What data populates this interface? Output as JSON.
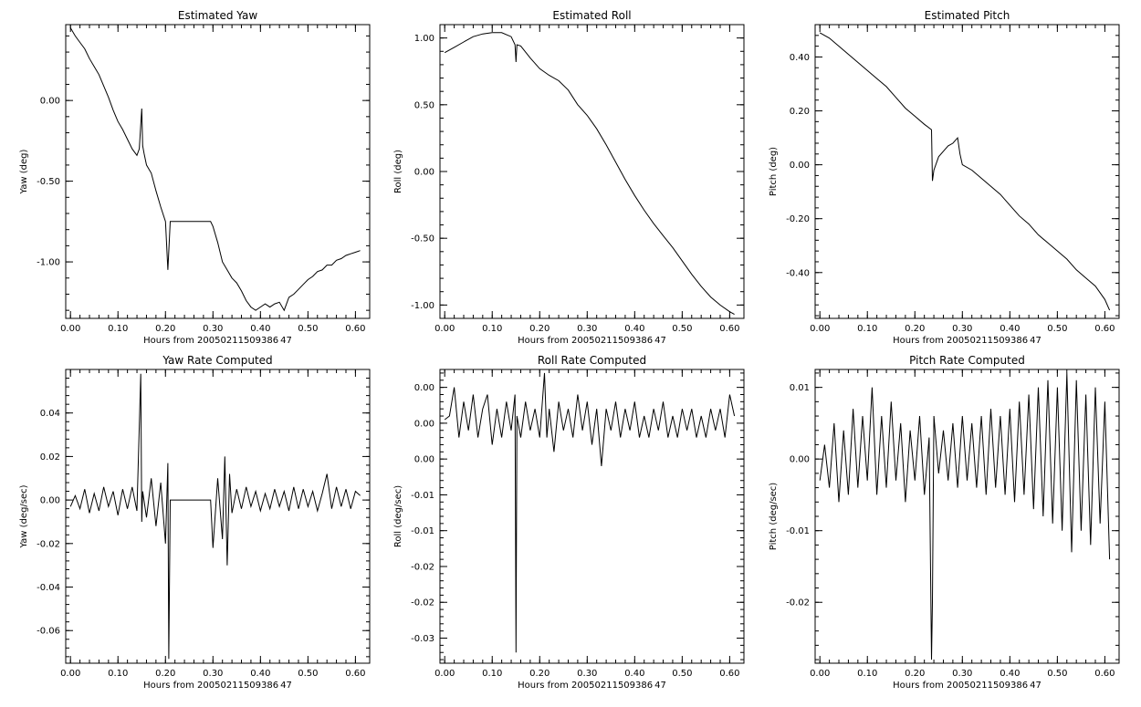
{
  "chart_data": [
    {
      "type": "line",
      "title": "Estimated Yaw",
      "xlabel": "Hours from 20050211509386 47",
      "ylabel": "Yaw (deg)",
      "xlim": [
        -0.01,
        0.63
      ],
      "ylim": [
        -1.35,
        0.47
      ],
      "xticks": [
        "0.00",
        "0.10",
        "0.20",
        "0.30",
        "0.40",
        "0.50",
        "0.60"
      ],
      "yticks": [
        "0.00",
        "-0.50",
        "-1.00"
      ],
      "x": [
        0.0,
        0.01,
        0.02,
        0.03,
        0.04,
        0.05,
        0.06,
        0.07,
        0.08,
        0.09,
        0.1,
        0.11,
        0.12,
        0.13,
        0.14,
        0.145,
        0.15,
        0.152,
        0.155,
        0.16,
        0.17,
        0.18,
        0.19,
        0.2,
        0.205,
        0.21,
        0.22,
        0.25,
        0.28,
        0.295,
        0.3,
        0.31,
        0.32,
        0.33,
        0.34,
        0.35,
        0.36,
        0.37,
        0.38,
        0.39,
        0.4,
        0.41,
        0.42,
        0.43,
        0.44,
        0.45,
        0.46,
        0.47,
        0.48,
        0.49,
        0.5,
        0.51,
        0.52,
        0.53,
        0.54,
        0.55,
        0.56,
        0.57,
        0.58,
        0.59,
        0.6,
        0.61
      ],
      "values": [
        0.45,
        0.4,
        0.36,
        0.32,
        0.26,
        0.21,
        0.16,
        0.09,
        0.02,
        -0.06,
        -0.13,
        -0.18,
        -0.24,
        -0.3,
        -0.34,
        -0.3,
        -0.05,
        -0.28,
        -0.33,
        -0.4,
        -0.45,
        -0.56,
        -0.66,
        -0.75,
        -1.05,
        -0.75,
        -0.75,
        -0.75,
        -0.75,
        -0.75,
        -0.78,
        -0.88,
        -1.0,
        -1.05,
        -1.1,
        -1.13,
        -1.18,
        -1.24,
        -1.28,
        -1.3,
        -1.28,
        -1.26,
        -1.28,
        -1.26,
        -1.25,
        -1.3,
        -1.22,
        -1.2,
        -1.17,
        -1.14,
        -1.11,
        -1.09,
        -1.06,
        -1.05,
        -1.02,
        -1.02,
        -0.99,
        -0.98,
        -0.96,
        -0.95,
        -0.94,
        -0.93
      ]
    },
    {
      "type": "line",
      "title": "Estimated Roll",
      "xlabel": "Hours from 20050211509386 47",
      "ylabel": "Roll (deg)",
      "xlim": [
        -0.01,
        0.63
      ],
      "ylim": [
        -1.1,
        1.1
      ],
      "xticks": [
        "0.00",
        "0.10",
        "0.20",
        "0.30",
        "0.40",
        "0.50",
        "0.60"
      ],
      "yticks": [
        "1.00",
        "0.50",
        "0.00",
        "-0.50",
        "-1.00"
      ],
      "x": [
        0.0,
        0.02,
        0.04,
        0.06,
        0.08,
        0.1,
        0.12,
        0.14,
        0.148,
        0.15,
        0.152,
        0.16,
        0.18,
        0.2,
        0.22,
        0.24,
        0.26,
        0.28,
        0.3,
        0.32,
        0.34,
        0.36,
        0.38,
        0.4,
        0.42,
        0.44,
        0.46,
        0.48,
        0.5,
        0.52,
        0.54,
        0.56,
        0.58,
        0.6,
        0.61
      ],
      "values": [
        0.89,
        0.93,
        0.97,
        1.01,
        1.03,
        1.04,
        1.04,
        1.01,
        0.95,
        0.82,
        0.95,
        0.94,
        0.85,
        0.77,
        0.72,
        0.68,
        0.61,
        0.5,
        0.42,
        0.32,
        0.2,
        0.07,
        -0.06,
        -0.18,
        -0.29,
        -0.39,
        -0.48,
        -0.57,
        -0.67,
        -0.77,
        -0.86,
        -0.94,
        -1.0,
        -1.05,
        -1.07
      ]
    },
    {
      "type": "line",
      "title": "Estimated Pitch",
      "xlabel": "Hours from 20050211509386 47",
      "ylabel": "Pitch (deg)",
      "xlim": [
        -0.01,
        0.63
      ],
      "ylim": [
        -0.57,
        0.52
      ],
      "xticks": [
        "0.00",
        "0.10",
        "0.20",
        "0.30",
        "0.40",
        "0.50",
        "0.60"
      ],
      "yticks": [
        "0.40",
        "0.20",
        "0.00",
        "-0.20",
        "-0.40"
      ],
      "x": [
        0.0,
        0.02,
        0.04,
        0.06,
        0.08,
        0.1,
        0.12,
        0.14,
        0.16,
        0.18,
        0.2,
        0.22,
        0.235,
        0.237,
        0.24,
        0.25,
        0.26,
        0.27,
        0.28,
        0.29,
        0.295,
        0.3,
        0.32,
        0.34,
        0.36,
        0.38,
        0.4,
        0.42,
        0.44,
        0.46,
        0.48,
        0.5,
        0.52,
        0.54,
        0.56,
        0.58,
        0.6,
        0.61
      ],
      "values": [
        0.49,
        0.47,
        0.44,
        0.41,
        0.38,
        0.35,
        0.32,
        0.29,
        0.25,
        0.21,
        0.18,
        0.15,
        0.13,
        -0.06,
        -0.02,
        0.03,
        0.05,
        0.07,
        0.08,
        0.1,
        0.04,
        0.0,
        -0.02,
        -0.05,
        -0.08,
        -0.11,
        -0.15,
        -0.19,
        -0.22,
        -0.26,
        -0.29,
        -0.32,
        -0.35,
        -0.39,
        -0.42,
        -0.45,
        -0.5,
        -0.54
      ]
    },
    {
      "type": "line",
      "title": "Yaw Rate Computed",
      "xlabel": "Hours from 20050211509386 47",
      "ylabel": "Yaw (deg/sec)",
      "xlim": [
        -0.01,
        0.63
      ],
      "ylim": [
        -0.075,
        0.06
      ],
      "xticks": [
        "0.00",
        "0.10",
        "0.20",
        "0.30",
        "0.40",
        "0.50",
        "0.60"
      ],
      "yticks": [
        "0.04",
        "0.02",
        "0.00",
        "-0.02",
        "-0.04",
        "-0.06"
      ],
      "x": [
        0.0,
        0.01,
        0.02,
        0.03,
        0.04,
        0.05,
        0.06,
        0.07,
        0.08,
        0.09,
        0.1,
        0.11,
        0.12,
        0.13,
        0.14,
        0.148,
        0.15,
        0.152,
        0.16,
        0.17,
        0.18,
        0.19,
        0.2,
        0.205,
        0.207,
        0.21,
        0.22,
        0.25,
        0.28,
        0.295,
        0.3,
        0.31,
        0.32,
        0.325,
        0.33,
        0.335,
        0.34,
        0.35,
        0.36,
        0.37,
        0.38,
        0.39,
        0.4,
        0.41,
        0.42,
        0.43,
        0.44,
        0.45,
        0.46,
        0.47,
        0.48,
        0.49,
        0.5,
        0.51,
        0.52,
        0.53,
        0.54,
        0.55,
        0.56,
        0.57,
        0.58,
        0.59,
        0.6,
        0.61
      ],
      "values": [
        -0.003,
        0.002,
        -0.004,
        0.005,
        -0.006,
        0.003,
        -0.005,
        0.006,
        -0.003,
        0.004,
        -0.007,
        0.005,
        -0.004,
        0.006,
        -0.005,
        0.058,
        -0.01,
        0.004,
        -0.008,
        0.01,
        -0.012,
        0.008,
        -0.02,
        0.017,
        -0.073,
        0.0,
        0.0,
        0.0,
        0.0,
        0.0,
        -0.022,
        0.01,
        -0.018,
        0.02,
        -0.03,
        0.012,
        -0.006,
        0.005,
        -0.004,
        0.006,
        -0.003,
        0.004,
        -0.005,
        0.003,
        -0.004,
        0.005,
        -0.003,
        0.004,
        -0.005,
        0.006,
        -0.004,
        0.005,
        -0.003,
        0.004,
        -0.005,
        0.003,
        0.012,
        -0.004,
        0.006,
        -0.003,
        0.005,
        -0.004,
        0.004,
        0.002
      ]
    },
    {
      "type": "line",
      "title": "Roll Rate Computed",
      "xlabel": "Hours from 20050211509386 47",
      "ylabel": "Roll (deg/sec)",
      "xlim": [
        -0.01,
        0.63
      ],
      "ylim": [
        -0.0335,
        0.0075
      ],
      "xticks": [
        "0.00",
        "0.10",
        "0.20",
        "0.30",
        "0.40",
        "0.50",
        "0.60"
      ],
      "yticks": [
        "0.00",
        "0.00",
        "0.00",
        "-0.01",
        "-0.01",
        "-0.02",
        "-0.02",
        "-0.03"
      ],
      "ytick_values": [
        0.005,
        0.0,
        -0.005,
        -0.01,
        -0.015,
        -0.02,
        -0.025,
        -0.03
      ],
      "x": [
        0.0,
        0.01,
        0.02,
        0.03,
        0.04,
        0.05,
        0.06,
        0.07,
        0.08,
        0.09,
        0.1,
        0.11,
        0.12,
        0.13,
        0.14,
        0.148,
        0.15,
        0.152,
        0.16,
        0.17,
        0.18,
        0.19,
        0.2,
        0.21,
        0.215,
        0.22,
        0.23,
        0.24,
        0.25,
        0.26,
        0.27,
        0.28,
        0.29,
        0.3,
        0.31,
        0.32,
        0.33,
        0.34,
        0.35,
        0.36,
        0.37,
        0.38,
        0.39,
        0.4,
        0.41,
        0.42,
        0.43,
        0.44,
        0.45,
        0.46,
        0.47,
        0.48,
        0.49,
        0.5,
        0.51,
        0.52,
        0.53,
        0.54,
        0.55,
        0.56,
        0.57,
        0.58,
        0.59,
        0.6,
        0.61
      ],
      "values": [
        0.0005,
        0.001,
        0.005,
        -0.002,
        0.003,
        -0.001,
        0.004,
        -0.002,
        0.002,
        0.004,
        -0.003,
        0.002,
        -0.002,
        0.003,
        -0.001,
        0.004,
        -0.032,
        0.001,
        -0.002,
        0.003,
        -0.001,
        0.002,
        -0.002,
        0.007,
        -0.002,
        0.002,
        -0.004,
        0.003,
        -0.001,
        0.002,
        -0.002,
        0.004,
        -0.001,
        0.003,
        -0.003,
        0.002,
        -0.006,
        0.002,
        -0.001,
        0.003,
        -0.002,
        0.002,
        -0.001,
        0.003,
        -0.002,
        0.001,
        -0.002,
        0.002,
        -0.001,
        0.003,
        -0.002,
        0.001,
        -0.002,
        0.002,
        -0.001,
        0.002,
        -0.002,
        0.001,
        -0.002,
        0.002,
        -0.001,
        0.002,
        -0.002,
        0.004,
        0.001
      ]
    },
    {
      "type": "line",
      "title": "Pitch Rate Computed",
      "xlabel": "Hours from 20050211509386 47",
      "ylabel": "Pitch (deg/sec)",
      "xlim": [
        -0.01,
        0.63
      ],
      "ylim": [
        -0.0285,
        0.0125
      ],
      "xticks": [
        "0.00",
        "0.10",
        "0.20",
        "0.30",
        "0.40",
        "0.50",
        "0.60"
      ],
      "yticks": [
        "0.01",
        "0.00",
        "-0.01",
        "-0.02"
      ],
      "ytick_values": [
        0.01,
        0.0,
        -0.01,
        -0.02
      ],
      "x": [
        0.0,
        0.01,
        0.02,
        0.03,
        0.04,
        0.05,
        0.06,
        0.07,
        0.08,
        0.09,
        0.1,
        0.11,
        0.12,
        0.13,
        0.14,
        0.15,
        0.16,
        0.17,
        0.18,
        0.19,
        0.2,
        0.21,
        0.22,
        0.23,
        0.235,
        0.237,
        0.24,
        0.25,
        0.26,
        0.27,
        0.28,
        0.29,
        0.3,
        0.31,
        0.32,
        0.33,
        0.34,
        0.35,
        0.36,
        0.37,
        0.38,
        0.39,
        0.4,
        0.41,
        0.42,
        0.43,
        0.44,
        0.45,
        0.46,
        0.47,
        0.48,
        0.49,
        0.5,
        0.51,
        0.52,
        0.53,
        0.54,
        0.55,
        0.56,
        0.57,
        0.58,
        0.59,
        0.6,
        0.61
      ],
      "values": [
        -0.003,
        0.002,
        -0.004,
        0.005,
        -0.006,
        0.004,
        -0.005,
        0.007,
        -0.004,
        0.006,
        -0.003,
        0.01,
        -0.005,
        0.006,
        -0.004,
        0.008,
        -0.003,
        0.005,
        -0.006,
        0.004,
        -0.003,
        0.006,
        -0.005,
        0.003,
        -0.028,
        -0.02,
        0.006,
        -0.002,
        0.004,
        -0.003,
        0.005,
        -0.004,
        0.006,
        -0.003,
        0.005,
        -0.004,
        0.006,
        -0.005,
        0.007,
        -0.004,
        0.006,
        -0.005,
        0.007,
        -0.006,
        0.008,
        -0.005,
        0.009,
        -0.007,
        0.01,
        -0.008,
        0.011,
        -0.009,
        0.01,
        -0.01,
        0.012,
        -0.013,
        0.011,
        -0.01,
        0.009,
        -0.012,
        0.01,
        -0.009,
        0.008,
        -0.014
      ]
    }
  ]
}
